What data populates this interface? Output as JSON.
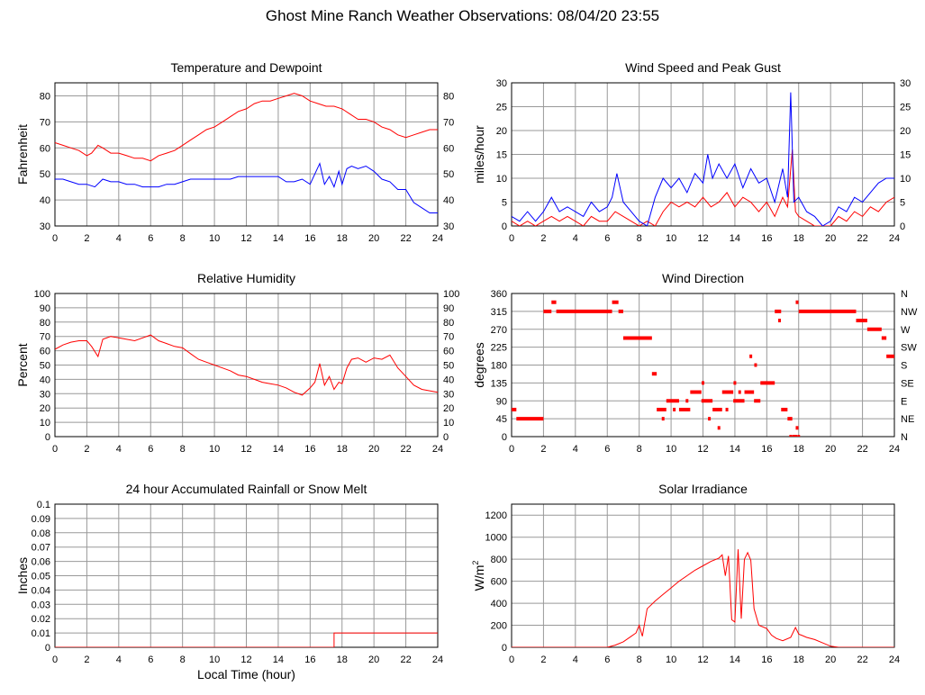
{
  "page": {
    "title": "Ghost Mine Ranch Weather Observations: 08/04/20 23:55"
  },
  "colors": {
    "red": "#ff0000",
    "blue": "#0000ff",
    "grid": "#999999"
  },
  "chart_data": [
    {
      "id": "temperature",
      "type": "line",
      "title": "Temperature and Dewpoint",
      "ylabel": "Fahrenheit",
      "xlim": [
        0,
        24
      ],
      "ylim": [
        30,
        85
      ],
      "xticks": [
        0,
        2,
        4,
        6,
        8,
        10,
        12,
        14,
        16,
        18,
        20,
        22,
        24
      ],
      "yticks": [
        30,
        40,
        50,
        60,
        70,
        80
      ],
      "right_axis": true,
      "grid": true,
      "series": [
        {
          "color": "red",
          "x": [
            0,
            0.5,
            1,
            1.5,
            2,
            2.3,
            2.7,
            3,
            3.5,
            4,
            4.5,
            5,
            5.5,
            6,
            6.5,
            7,
            7.5,
            8,
            8.5,
            9,
            9.5,
            10,
            10.5,
            11,
            11.5,
            12,
            12.5,
            13,
            13.5,
            14,
            14.5,
            15,
            15.5,
            16,
            16.5,
            17,
            17.5,
            18,
            18.5,
            19,
            19.5,
            20,
            20.5,
            21,
            21.5,
            22,
            22.5,
            23,
            23.5,
            24
          ],
          "y": [
            62,
            61,
            60,
            59,
            57,
            58,
            61,
            60,
            58,
            58,
            57,
            56,
            56,
            55,
            57,
            58,
            59,
            61,
            63,
            65,
            67,
            68,
            70,
            72,
            74,
            75,
            77,
            78,
            78,
            79,
            80,
            81,
            80,
            78,
            77,
            76,
            76,
            75,
            73,
            71,
            71,
            70,
            68,
            67,
            65,
            64,
            65,
            66,
            67,
            67
          ]
        },
        {
          "color": "blue",
          "x": [
            0,
            0.5,
            1,
            1.5,
            2,
            2.5,
            3,
            3.5,
            4,
            4.5,
            5,
            5.5,
            6,
            6.5,
            7,
            7.5,
            8,
            8.5,
            9,
            9.5,
            10,
            10.5,
            11,
            11.5,
            12,
            12.5,
            13,
            13.5,
            14,
            14.5,
            15,
            15.5,
            16,
            16.3,
            16.6,
            16.9,
            17.2,
            17.5,
            17.8,
            18,
            18.3,
            18.6,
            19,
            19.5,
            20,
            20.5,
            21,
            21.5,
            22,
            22.5,
            23,
            23.5,
            24
          ],
          "y": [
            48,
            48,
            47,
            46,
            46,
            45,
            48,
            47,
            47,
            46,
            46,
            45,
            45,
            45,
            46,
            46,
            47,
            48,
            48,
            48,
            48,
            48,
            48,
            49,
            49,
            49,
            49,
            49,
            49,
            47,
            47,
            48,
            46,
            50,
            54,
            46,
            49,
            45,
            51,
            46,
            52,
            53,
            52,
            53,
            51,
            48,
            47,
            44,
            44,
            39,
            37,
            35,
            35
          ]
        }
      ]
    },
    {
      "id": "wind-speed",
      "type": "line",
      "title": "Wind Speed and Peak Gust",
      "ylabel": "miles/hour",
      "xlim": [
        0,
        24
      ],
      "ylim": [
        0,
        30
      ],
      "xticks": [
        0,
        2,
        4,
        6,
        8,
        10,
        12,
        14,
        16,
        18,
        20,
        22,
        24
      ],
      "yticks": [
        0,
        5,
        10,
        15,
        20,
        25,
        30
      ],
      "right_axis": true,
      "grid": true,
      "series": [
        {
          "color": "red",
          "x": [
            0,
            0.5,
            1,
            1.5,
            2,
            2.5,
            3,
            3.5,
            4,
            4.5,
            5,
            5.5,
            6,
            6.5,
            7,
            7.5,
            8,
            8.5,
            9,
            9.5,
            10,
            10.5,
            11,
            11.5,
            12,
            12.5,
            13,
            13.5,
            14,
            14.5,
            15,
            15.5,
            16,
            16.5,
            17,
            17.3,
            17.6,
            17.8,
            18,
            18.5,
            19,
            19.5,
            20,
            20.5,
            21,
            21.5,
            22,
            22.5,
            23,
            23.5,
            24
          ],
          "y": [
            1,
            0,
            1,
            0,
            1,
            2,
            1,
            2,
            1,
            0,
            2,
            1,
            1,
            3,
            2,
            1,
            0,
            1,
            0,
            3,
            5,
            4,
            5,
            4,
            6,
            4,
            5,
            7,
            4,
            6,
            5,
            3,
            5,
            2,
            6,
            4,
            16,
            3,
            2,
            1,
            0,
            0,
            0,
            2,
            1,
            3,
            2,
            4,
            3,
            5,
            6
          ]
        },
        {
          "color": "blue",
          "x": [
            0,
            0.5,
            1,
            1.5,
            2,
            2.5,
            3,
            3.5,
            4,
            4.5,
            5,
            5.5,
            6,
            6.3,
            6.6,
            7,
            7.5,
            8,
            8.5,
            9,
            9.5,
            10,
            10.5,
            11,
            11.5,
            12,
            12.3,
            12.6,
            13,
            13.5,
            14,
            14.5,
            15,
            15.5,
            16,
            16.5,
            17,
            17.3,
            17.5,
            17.7,
            18,
            18.5,
            19,
            19.5,
            20,
            20.5,
            21,
            21.5,
            22,
            22.5,
            23,
            23.5,
            24
          ],
          "y": [
            2,
            1,
            3,
            1,
            3,
            6,
            3,
            4,
            3,
            2,
            5,
            3,
            4,
            6,
            11,
            5,
            3,
            1,
            0,
            6,
            10,
            8,
            10,
            7,
            11,
            9,
            15,
            10,
            13,
            10,
            13,
            8,
            12,
            9,
            10,
            5,
            12,
            6,
            28,
            5,
            6,
            3,
            2,
            0,
            1,
            4,
            3,
            6,
            5,
            7,
            9,
            10,
            10
          ]
        }
      ]
    },
    {
      "id": "humidity",
      "type": "line",
      "title": "Relative Humidity",
      "ylabel": "Percent",
      "xlim": [
        0,
        24
      ],
      "ylim": [
        0,
        100
      ],
      "xticks": [
        0,
        2,
        4,
        6,
        8,
        10,
        12,
        14,
        16,
        18,
        20,
        22,
        24
      ],
      "yticks": [
        0,
        10,
        20,
        30,
        40,
        50,
        60,
        70,
        80,
        90,
        100
      ],
      "right_axis": true,
      "grid": true,
      "series": [
        {
          "color": "red",
          "x": [
            0,
            0.5,
            1,
            1.5,
            2,
            2.3,
            2.7,
            3,
            3.5,
            4,
            4.5,
            5,
            5.5,
            6,
            6.5,
            7,
            7.5,
            8,
            8.5,
            9,
            9.5,
            10,
            10.5,
            11,
            11.5,
            12,
            12.5,
            13,
            13.5,
            14,
            14.5,
            15,
            15.5,
            16,
            16.3,
            16.6,
            16.9,
            17.2,
            17.5,
            17.8,
            18,
            18.3,
            18.6,
            19,
            19.5,
            20,
            20.5,
            21,
            21.5,
            22,
            22.5,
            23,
            23.5,
            24
          ],
          "y": [
            61,
            64,
            66,
            67,
            67,
            63,
            56,
            68,
            70,
            69,
            68,
            67,
            69,
            71,
            67,
            65,
            63,
            62,
            58,
            54,
            52,
            50,
            48,
            46,
            43,
            42,
            40,
            38,
            37,
            36,
            34,
            31,
            29,
            34,
            38,
            51,
            36,
            42,
            33,
            38,
            37,
            48,
            54,
            55,
            52,
            55,
            54,
            57,
            48,
            42,
            36,
            33,
            32,
            31
          ]
        }
      ]
    },
    {
      "id": "wind-direction",
      "type": "scatter",
      "title": "Wind Direction",
      "ylabel": "degrees",
      "xlim": [
        0,
        24
      ],
      "ylim": [
        0,
        360
      ],
      "xticks": [
        0,
        2,
        4,
        6,
        8,
        10,
        12,
        14,
        16,
        18,
        20,
        22,
        24
      ],
      "yticks": [
        0,
        45,
        90,
        135,
        180,
        225,
        270,
        315,
        360
      ],
      "right_tick_labels": [
        "N",
        "NE",
        "E",
        "SE",
        "S",
        "SW",
        "W",
        "NW",
        "N"
      ],
      "grid": true,
      "series": [
        {
          "color": "red",
          "segments": [
            [
              0,
              0.3,
              68
            ],
            [
              0.3,
              2,
              45
            ],
            [
              2,
              2.5,
              315
            ],
            [
              2.5,
              2.8,
              338
            ],
            [
              2.8,
              6.3,
              315
            ],
            [
              6.3,
              6.7,
              338
            ],
            [
              6.7,
              7,
              315
            ],
            [
              7,
              8.8,
              248
            ],
            [
              8.8,
              9.1,
              158
            ],
            [
              9.1,
              9.7,
              68
            ],
            [
              9.7,
              10.5,
              90
            ],
            [
              10.5,
              11.2,
              68
            ],
            [
              11.2,
              11.9,
              112
            ],
            [
              11.9,
              12.6,
              90
            ],
            [
              12.6,
              13.2,
              68
            ],
            [
              13.2,
              13.9,
              112
            ],
            [
              13.9,
              14.6,
              90
            ],
            [
              14.6,
              15.2,
              112
            ],
            [
              15.2,
              15.6,
              90
            ],
            [
              15.6,
              16.5,
              135
            ],
            [
              16.5,
              16.9,
              315
            ],
            [
              16.9,
              17.3,
              68
            ],
            [
              17.3,
              17.6,
              45
            ],
            [
              17.6,
              17.9,
              0
            ],
            [
              18,
              21.6,
              315
            ],
            [
              21.6,
              22.3,
              292
            ],
            [
              22.3,
              23.2,
              270
            ],
            [
              23.2,
              23.5,
              248
            ],
            [
              23.5,
              24,
              202
            ]
          ],
          "points": [
            [
              9.5,
              45
            ],
            [
              10.2,
              68
            ],
            [
              11,
              90
            ],
            [
              12,
              135
            ],
            [
              12.4,
              45
            ],
            [
              13,
              22
            ],
            [
              13.5,
              68
            ],
            [
              14,
              135
            ],
            [
              14.3,
              112
            ],
            [
              15,
              202
            ],
            [
              15.3,
              180
            ],
            [
              16.8,
              292
            ],
            [
              17.5,
              0
            ],
            [
              17.9,
              22
            ],
            [
              18,
              0
            ],
            [
              17.9,
              338
            ]
          ]
        }
      ]
    },
    {
      "id": "rainfall",
      "type": "line",
      "title": "24 hour Accumulated Rainfall or Snow Melt",
      "ylabel": "Inches",
      "xlabel": "Local Time (hour)",
      "xlim": [
        0,
        24
      ],
      "ylim": [
        0,
        0.1
      ],
      "xticks": [
        0,
        2,
        4,
        6,
        8,
        10,
        12,
        14,
        16,
        18,
        20,
        22,
        24
      ],
      "yticks": [
        "0",
        "0.01",
        "0.02",
        "0.03",
        "0.04",
        "0.05",
        "0.06",
        "0.07",
        "0.08",
        "0.09",
        "0.1"
      ],
      "grid": true,
      "series": [
        {
          "color": "red",
          "x": [
            0,
            17.5,
            17.5,
            24
          ],
          "y": [
            0,
            0,
            0.01,
            0.01
          ]
        }
      ]
    },
    {
      "id": "solar",
      "type": "line",
      "title": "Solar Irradiance",
      "ylabel": "W/m",
      "ylabel_sup": "2",
      "xlim": [
        0,
        24
      ],
      "ylim": [
        0,
        1300
      ],
      "xticks": [
        0,
        2,
        4,
        6,
        8,
        10,
        12,
        14,
        16,
        18,
        20,
        22,
        24
      ],
      "yticks": [
        0,
        200,
        400,
        600,
        800,
        1000,
        1200
      ],
      "grid": true,
      "series": [
        {
          "color": "red",
          "x": [
            0,
            6,
            6.5,
            7,
            7.5,
            7.8,
            8,
            8.2,
            8.5,
            9,
            9.5,
            10,
            10.5,
            11,
            11.5,
            12,
            12.5,
            13,
            13.2,
            13.4,
            13.6,
            13.8,
            14,
            14.2,
            14.4,
            14.6,
            14.8,
            15,
            15.2,
            15.5,
            16,
            16.3,
            16.6,
            17,
            17.5,
            17.8,
            18,
            18.5,
            19,
            19.5,
            20,
            20.5,
            24
          ],
          "y": [
            0,
            0,
            20,
            50,
            100,
            130,
            200,
            100,
            350,
            420,
            480,
            540,
            600,
            650,
            700,
            740,
            780,
            810,
            840,
            650,
            830,
            250,
            230,
            890,
            260,
            800,
            860,
            790,
            350,
            200,
            170,
            110,
            80,
            60,
            90,
            180,
            120,
            90,
            70,
            40,
            10,
            0,
            0
          ]
        }
      ]
    }
  ]
}
